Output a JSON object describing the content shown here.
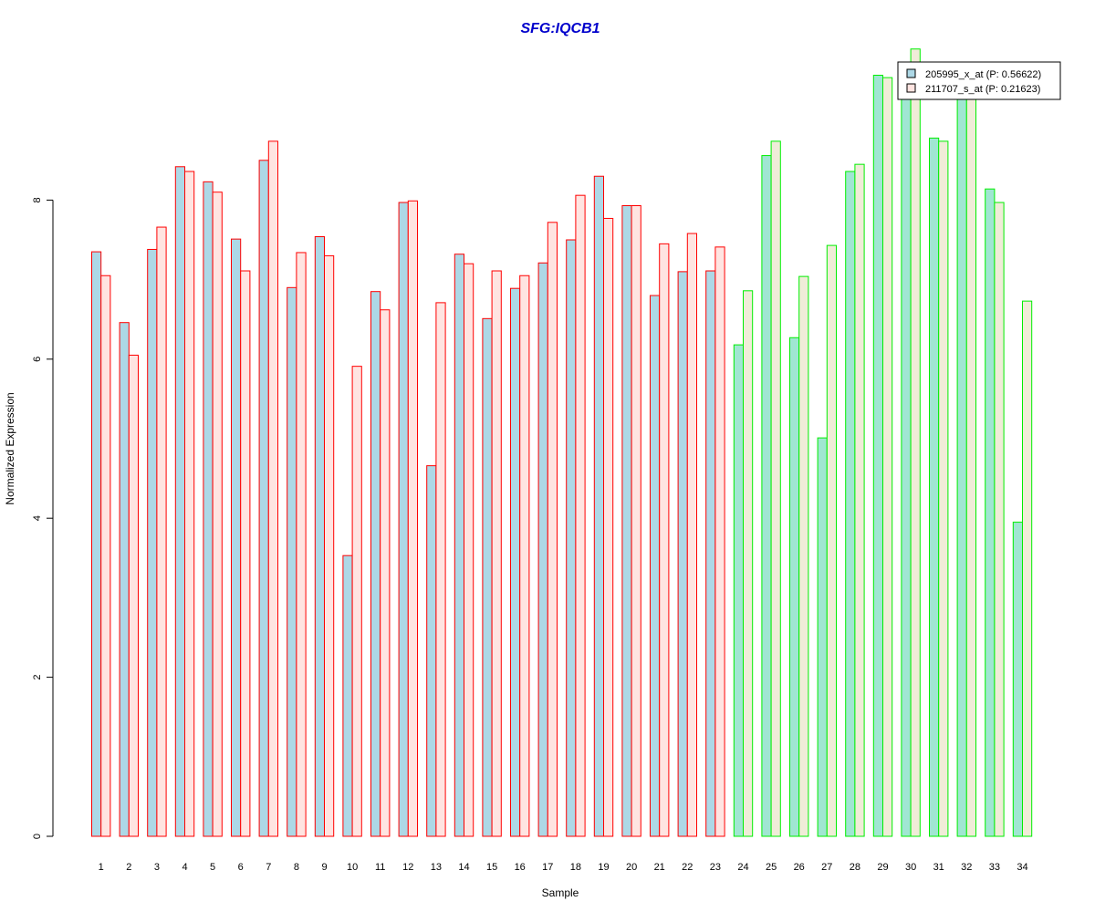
{
  "chart_data": {
    "type": "bar",
    "title": "SFG:IQCB1",
    "xlabel": "Sample",
    "ylabel": "Normalized Expression",
    "ylim": [
      0,
      10
    ],
    "yticks": [
      "0",
      "2",
      "4",
      "6",
      "8"
    ],
    "categories": [
      "1",
      "2",
      "3",
      "4",
      "5",
      "6",
      "7",
      "8",
      "9",
      "10",
      "11",
      "12",
      "13",
      "14",
      "15",
      "16",
      "17",
      "18",
      "19",
      "20",
      "21",
      "22",
      "23",
      "24",
      "25",
      "26",
      "27",
      "28",
      "29",
      "30",
      "31",
      "32",
      "33",
      "34"
    ],
    "series": [
      {
        "name": "205995_x_at (P: 0.56622)",
        "values": [
          7.35,
          6.46,
          7.38,
          8.42,
          8.23,
          7.51,
          8.5,
          6.9,
          7.54,
          3.53,
          6.85,
          7.97,
          4.66,
          7.32,
          6.51,
          6.89,
          7.21,
          7.5,
          8.3,
          7.93,
          6.8,
          7.1,
          7.11,
          6.18,
          8.56,
          6.27,
          5.01,
          8.36,
          9.57,
          9.6,
          8.78,
          9.5,
          8.14,
          3.95
        ]
      },
      {
        "name": "211707_s_at (P: 0.21623)",
        "values": [
          7.05,
          6.05,
          7.66,
          8.36,
          8.1,
          7.11,
          8.74,
          7.34,
          7.3,
          5.91,
          6.62,
          7.99,
          6.71,
          7.2,
          7.11,
          7.05,
          7.72,
          8.06,
          7.77,
          7.93,
          7.45,
          7.58,
          7.41,
          6.86,
          8.74,
          7.04,
          7.43,
          8.45,
          9.54,
          9.9,
          8.74,
          9.5,
          7.97,
          6.73
        ]
      }
    ],
    "group_of_sample": [
      "A",
      "A",
      "A",
      "A",
      "A",
      "A",
      "A",
      "A",
      "A",
      "A",
      "A",
      "A",
      "A",
      "A",
      "A",
      "A",
      "A",
      "A",
      "A",
      "A",
      "A",
      "A",
      "A",
      "B",
      "B",
      "B",
      "B",
      "B",
      "B",
      "B",
      "B",
      "B",
      "B",
      "B"
    ],
    "colors": {
      "series1_fill_groupA": "#add8e6",
      "series2_fill_groupA": "#ffe4e1",
      "border_groupA": "#ff0000",
      "series1_fill_groupB": "#a0e6d2",
      "series2_fill_groupB": "#f0ecd8",
      "border_groupB": "#00ee00",
      "title": "#0000cc"
    },
    "legend": {
      "position": "top-right",
      "entries": [
        "205995_x_at (P: 0.56622)",
        "211707_s_at (P: 0.21623)"
      ]
    },
    "grid": false
  }
}
